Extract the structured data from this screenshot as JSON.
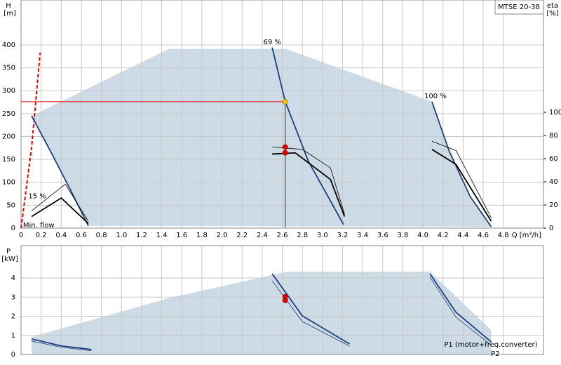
{
  "chart_data": [
    {
      "type": "line",
      "model": "MTSE 20-38",
      "y_label": "H",
      "y_unit": "[m]",
      "y2_label": "eta",
      "y2_unit": "[%]",
      "x_label": "Q [m³/h]",
      "xlim": [
        0,
        5.2
      ],
      "ylim": [
        0,
        498
      ],
      "y2lim": [
        0,
        197
      ],
      "xticks": [
        0,
        0.2,
        0.4,
        0.6,
        0.8,
        {
          "value": 1,
          "label": "1.0"
        },
        1.2,
        1.4,
        1.6,
        1.8,
        {
          "value": 2,
          "label": "2.0"
        },
        2.2,
        2.4,
        2.6,
        2.8,
        {
          "value": 3,
          "label": "3.0"
        },
        3.2,
        3.4,
        3.6,
        3.8,
        {
          "value": 4,
          "label": "4.0"
        },
        4.2,
        4.4,
        4.6,
        4.8
      ],
      "yticks": [
        0,
        50,
        100,
        150,
        200,
        250,
        300,
        350,
        400
      ],
      "y2ticks": [
        0,
        20,
        40,
        60,
        80,
        100
      ],
      "grid": true,
      "area": {
        "color": "#cddbe7",
        "x": [
          0.105,
          0.3,
          0.5,
          0.67,
          4.68,
          4.47,
          4.26,
          4.09,
          2.64,
          1.47,
          0.105
        ],
        "values": [
          245,
          165,
          80,
          5,
          3,
          69,
          169,
          276,
          391,
          391,
          245
        ]
      },
      "series": [
        {
          "name": "Min. flow",
          "color": "#e00000",
          "style": "dashed",
          "x": [
            0,
            0.105,
            0.19
          ],
          "values": [
            0,
            176,
            383
          ]
        },
        {
          "name": "15 %",
          "color": "#1c3f7a",
          "x": [
            0.105,
            0.3,
            0.5,
            0.67
          ],
          "values": [
            245,
            165,
            80,
            5
          ]
        },
        {
          "name": "69 %",
          "color": "#1c3f7a",
          "x": [
            2.5,
            2.63,
            2.86,
            3.21
          ],
          "values": [
            394,
            276,
            146,
            8
          ]
        },
        {
          "name": "100 %",
          "color": "#1c3f7a",
          "x": [
            4.09,
            4.26,
            4.47,
            4.68
          ],
          "values": [
            276,
            169,
            69,
            3
          ]
        },
        {
          "color": "#000000",
          "style": "thin",
          "axis": "y2",
          "x": [
            0.105,
            0.44,
            0.67
          ],
          "values": [
            15,
            38,
            6
          ]
        },
        {
          "color": "#000000",
          "axis": "y2",
          "x": [
            0.105,
            0.4,
            0.67
          ],
          "values": [
            10,
            26,
            4
          ]
        },
        {
          "color": "#000000",
          "style": "thin",
          "axis": "y2",
          "x": [
            2.5,
            2.8,
            3.08,
            3.22
          ],
          "values": [
            70,
            68,
            52,
            12
          ]
        },
        {
          "color": "#000000",
          "axis": "y2",
          "x": [
            2.5,
            2.73,
            3.08,
            3.22
          ],
          "values": [
            64,
            65,
            42,
            10
          ]
        },
        {
          "color": "#000000",
          "style": "thin",
          "axis": "y2",
          "x": [
            4.09,
            4.33,
            4.68
          ],
          "values": [
            75,
            67,
            9
          ]
        },
        {
          "color": "#000000",
          "axis": "y2",
          "x": [
            4.09,
            4.33,
            4.68
          ],
          "values": [
            68,
            55,
            6
          ]
        }
      ],
      "points": [
        {
          "x": 2.63,
          "value": 276,
          "color": "#f5c400"
        },
        {
          "x": 2.63,
          "value": 70,
          "axis": "y2",
          "color": "#e00000"
        },
        {
          "x": 2.63,
          "value": 65,
          "axis": "y2",
          "color": "#e00000"
        }
      ]
    },
    {
      "type": "line",
      "y_label": "P",
      "y_unit": "[kW]",
      "xlim": [
        0,
        5.2
      ],
      "ylim": [
        0,
        5.69
      ],
      "xticks": [
        0,
        0.2,
        0.4,
        0.6,
        0.8,
        1,
        1.2,
        1.4,
        1.6,
        1.8,
        2,
        2.2,
        2.4,
        2.6,
        2.8,
        3,
        3.2,
        3.4,
        3.6,
        3.8,
        4,
        4.2,
        4.4,
        4.6,
        4.8
      ],
      "yticks": [
        0,
        1,
        2,
        3,
        4
      ],
      "grid": true,
      "area": {
        "color": "#cddbe7",
        "x": [
          0.105,
          1.47,
          2.64,
          4.07,
          4.68,
          4.68,
          0.105
        ],
        "values": [
          0.92,
          2.94,
          4.33,
          4.33,
          1.28,
          0,
          0
        ]
      },
      "series": [
        {
          "color": "#1c3f7a",
          "x": [
            0.105,
            0.4,
            0.7
          ],
          "values": [
            0.81,
            0.45,
            0.26
          ]
        },
        {
          "color": "#1c3f7a",
          "style": "thin",
          "x": [
            0.105,
            0.4,
            0.7
          ],
          "values": [
            0.7,
            0.38,
            0.2
          ]
        },
        {
          "color": "#1c3f7a",
          "x": [
            2.5,
            2.8,
            3.27
          ],
          "values": [
            4.22,
            2.02,
            0.55
          ]
        },
        {
          "color": "#1c3f7a",
          "style": "thin",
          "x": [
            2.5,
            2.8,
            3.27
          ],
          "values": [
            3.85,
            1.72,
            0.44
          ]
        },
        {
          "name": "P1 (motor+freq.converter)",
          "color": "#1c3f7a",
          "x": [
            4.07,
            4.33,
            4.68
          ],
          "values": [
            4.22,
            2.2,
            0.66
          ]
        },
        {
          "name": "P2",
          "color": "#1c3f7a",
          "style": "thin",
          "x": [
            4.07,
            4.33,
            4.68
          ],
          "values": [
            4.04,
            1.95,
            0.48
          ]
        }
      ],
      "points": [
        {
          "x": 2.63,
          "value": 3.02,
          "color": "#e00000"
        },
        {
          "x": 2.63,
          "value": 2.83,
          "color": "#e00000"
        }
      ]
    }
  ]
}
